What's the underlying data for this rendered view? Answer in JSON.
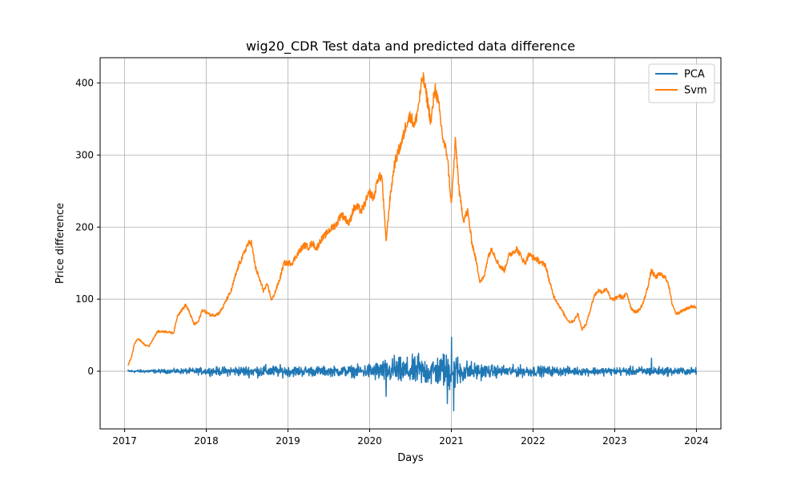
{
  "chart_data": {
    "type": "line",
    "title": "wig20_CDR Test data and predicted data difference",
    "xlabel": "Days",
    "ylabel": "Price difference",
    "xlim": [
      2016.7,
      2024.3
    ],
    "ylim": [
      -80,
      435
    ],
    "x_ticks": [
      2017,
      2018,
      2019,
      2020,
      2021,
      2022,
      2023,
      2024
    ],
    "x_tick_labels": [
      "2017",
      "2018",
      "2019",
      "2020",
      "2021",
      "2022",
      "2023",
      "2024"
    ],
    "y_ticks": [
      0,
      100,
      200,
      300,
      400
    ],
    "y_tick_labels": [
      "0",
      "100",
      "200",
      "300",
      "400"
    ],
    "grid": true,
    "legend_position": "top-right",
    "series": [
      {
        "name": "PCA",
        "color": "#1f77b4",
        "style": "noise",
        "x_start": 2017.04,
        "x_end": 2024.0,
        "amplitude_envelope": [
          [
            2017.04,
            2
          ],
          [
            2017.5,
            3
          ],
          [
            2017.9,
            5
          ],
          [
            2018.3,
            7
          ],
          [
            2018.7,
            9
          ],
          [
            2019.0,
            8
          ],
          [
            2019.5,
            7
          ],
          [
            2019.9,
            9
          ],
          [
            2020.1,
            15
          ],
          [
            2020.4,
            20
          ],
          [
            2020.7,
            22
          ],
          [
            2020.9,
            24
          ],
          [
            2021.0,
            30
          ],
          [
            2021.2,
            15
          ],
          [
            2021.5,
            9
          ],
          [
            2022.0,
            8
          ],
          [
            2022.5,
            6
          ],
          [
            2023.0,
            6
          ],
          [
            2023.5,
            7
          ],
          [
            2024.0,
            5
          ]
        ],
        "spikes": [
          [
            2020.2,
            -35
          ],
          [
            2020.3,
            22
          ],
          [
            2020.6,
            25
          ],
          [
            2020.9,
            24
          ],
          [
            2020.95,
            -45
          ],
          [
            2021.0,
            47
          ],
          [
            2021.03,
            -55
          ],
          [
            2023.45,
            18
          ]
        ]
      },
      {
        "name": "Svm",
        "color": "#ff7f0e",
        "style": "line",
        "x": [
          2017.04,
          2017.08,
          2017.12,
          2017.16,
          2017.2,
          2017.25,
          2017.3,
          2017.35,
          2017.4,
          2017.45,
          2017.5,
          2017.55,
          2017.6,
          2017.65,
          2017.7,
          2017.75,
          2017.8,
          2017.85,
          2017.9,
          2017.95,
          2018.0,
          2018.05,
          2018.1,
          2018.15,
          2018.2,
          2018.25,
          2018.3,
          2018.35,
          2018.4,
          2018.45,
          2018.5,
          2018.55,
          2018.6,
          2018.65,
          2018.7,
          2018.75,
          2018.8,
          2018.85,
          2018.9,
          2018.95,
          2019.0,
          2019.05,
          2019.1,
          2019.15,
          2019.2,
          2019.25,
          2019.3,
          2019.35,
          2019.4,
          2019.45,
          2019.5,
          2019.55,
          2019.6,
          2019.65,
          2019.7,
          2019.75,
          2019.8,
          2019.85,
          2019.9,
          2019.95,
          2020.0,
          2020.05,
          2020.1,
          2020.15,
          2020.2,
          2020.25,
          2020.3,
          2020.35,
          2020.4,
          2020.45,
          2020.5,
          2020.55,
          2020.6,
          2020.65,
          2020.7,
          2020.75,
          2020.8,
          2020.85,
          2020.9,
          2020.95,
          2021.0,
          2021.05,
          2021.1,
          2021.15,
          2021.2,
          2021.25,
          2021.3,
          2021.35,
          2021.4,
          2021.45,
          2021.5,
          2021.55,
          2021.6,
          2021.65,
          2021.7,
          2021.75,
          2021.8,
          2021.85,
          2021.9,
          2021.95,
          2022.0,
          2022.05,
          2022.1,
          2022.15,
          2022.2,
          2022.25,
          2022.3,
          2022.35,
          2022.4,
          2022.45,
          2022.5,
          2022.55,
          2022.6,
          2022.65,
          2022.7,
          2022.75,
          2022.8,
          2022.85,
          2022.9,
          2022.95,
          2023.0,
          2023.05,
          2023.1,
          2023.15,
          2023.2,
          2023.25,
          2023.3,
          2023.35,
          2023.4,
          2023.45,
          2023.5,
          2023.55,
          2023.6,
          2023.65,
          2023.7,
          2023.75,
          2023.8,
          2023.85,
          2023.9,
          2023.95,
          2024.0
        ],
        "y": [
          8,
          18,
          38,
          45,
          42,
          36,
          35,
          45,
          55,
          55,
          55,
          54,
          53,
          78,
          85,
          92,
          80,
          65,
          68,
          85,
          82,
          78,
          78,
          80,
          88,
          100,
          110,
          130,
          148,
          160,
          175,
          180,
          145,
          128,
          112,
          120,
          98,
          112,
          128,
          150,
          150,
          150,
          160,
          168,
          175,
          172,
          178,
          170,
          182,
          188,
          195,
          200,
          205,
          218,
          212,
          205,
          225,
          228,
          222,
          235,
          248,
          240,
          268,
          270,
          180,
          240,
          285,
          305,
          320,
          345,
          355,
          340,
          370,
          410,
          380,
          345,
          395,
          365,
          320,
          300,
          230,
          320,
          245,
          210,
          222,
          180,
          155,
          125,
          130,
          160,
          170,
          155,
          145,
          140,
          160,
          165,
          170,
          160,
          150,
          162,
          158,
          155,
          150,
          148,
          125,
          105,
          95,
          85,
          75,
          68,
          70,
          80,
          58,
          65,
          85,
          105,
          112,
          110,
          115,
          100,
          100,
          105,
          102,
          108,
          88,
          82,
          85,
          95,
          115,
          140,
          130,
          135,
          132,
          125,
          95,
          80,
          82,
          85,
          88,
          90,
          89
        ]
      }
    ]
  }
}
